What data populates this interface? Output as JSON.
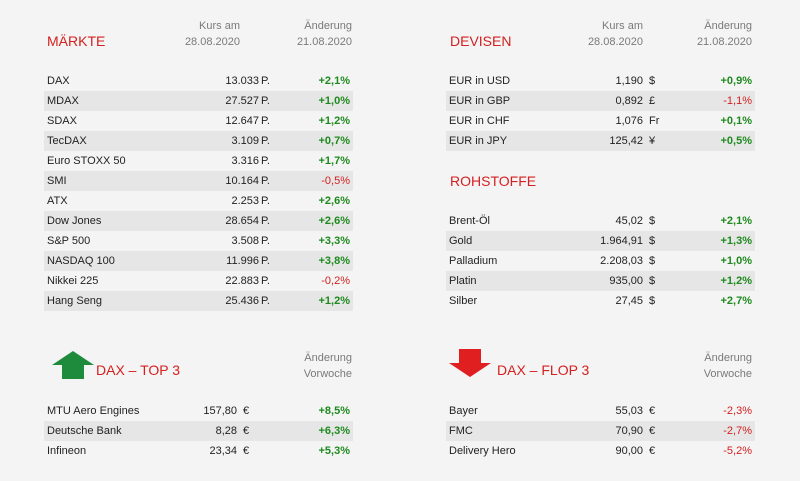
{
  "maerkte": {
    "title": "MÄRKTE",
    "col1": [
      "Kurs am",
      "28.08.2020"
    ],
    "col2": [
      "Änderung",
      "21.08.2020"
    ],
    "rows": [
      {
        "name": "DAX",
        "value": "13.033",
        "unit": "P.",
        "change": "+2,1%",
        "dir": "pos"
      },
      {
        "name": "MDAX",
        "value": "27.527",
        "unit": "P.",
        "change": "+1,0%",
        "dir": "pos"
      },
      {
        "name": "SDAX",
        "value": "12.647",
        "unit": "P.",
        "change": "+1,2%",
        "dir": "pos"
      },
      {
        "name": "TecDAX",
        "value": "3.109",
        "unit": "P.",
        "change": "+0,7%",
        "dir": "pos"
      },
      {
        "name": "Euro STOXX 50",
        "value": "3.316",
        "unit": "P.",
        "change": "+1,7%",
        "dir": "pos"
      },
      {
        "name": "SMI",
        "value": "10.164",
        "unit": "P.",
        "change": "-0,5%",
        "dir": "neg"
      },
      {
        "name": "ATX",
        "value": "2.253",
        "unit": "P.",
        "change": "+2,6%",
        "dir": "pos"
      },
      {
        "name": "Dow Jones",
        "value": "28.654",
        "unit": "P.",
        "change": "+2,6%",
        "dir": "pos"
      },
      {
        "name": "S&P 500",
        "value": "3.508",
        "unit": "P.",
        "change": "+3,3%",
        "dir": "pos"
      },
      {
        "name": "NASDAQ 100",
        "value": "11.996",
        "unit": "P.",
        "change": "+3,8%",
        "dir": "pos"
      },
      {
        "name": "Nikkei 225",
        "value": "22.883",
        "unit": "P.",
        "change": "-0,2%",
        "dir": "neg"
      },
      {
        "name": "Hang Seng",
        "value": "25.436",
        "unit": "P.",
        "change": "+1,2%",
        "dir": "pos"
      }
    ]
  },
  "devisen": {
    "title": "DEVISEN",
    "col1": [
      "Kurs am",
      "28.08.2020"
    ],
    "col2": [
      "Änderung",
      "21.08.2020"
    ],
    "rows": [
      {
        "name": "EUR in USD",
        "value": "1,190",
        "unit": "$",
        "change": "+0,9%",
        "dir": "pos"
      },
      {
        "name": "EUR in GBP",
        "value": "0,892",
        "unit": "£",
        "change": "-1,1%",
        "dir": "neg"
      },
      {
        "name": "EUR in CHF",
        "value": "1,076",
        "unit": "Fr",
        "change": "+0,1%",
        "dir": "pos"
      },
      {
        "name": "EUR in JPY",
        "value": "125,42",
        "unit": "¥",
        "change": "+0,5%",
        "dir": "pos"
      }
    ]
  },
  "rohstoffe": {
    "title": "ROHSTOFFE",
    "rows": [
      {
        "name": "Brent-Öl",
        "value": "45,02",
        "unit": "$",
        "change": "+2,1%",
        "dir": "pos"
      },
      {
        "name": "Gold",
        "value": "1.964,91",
        "unit": "$",
        "change": "+1,3%",
        "dir": "pos"
      },
      {
        "name": "Palladium",
        "value": "2.208,03",
        "unit": "$",
        "change": "+1,0%",
        "dir": "pos"
      },
      {
        "name": "Platin",
        "value": "935,00",
        "unit": "$",
        "change": "+1,2%",
        "dir": "pos"
      },
      {
        "name": "Silber",
        "value": "27,45",
        "unit": "$",
        "change": "+2,7%",
        "dir": "pos"
      }
    ]
  },
  "top3": {
    "title": "DAX – TOP 3",
    "icon": "arrow-up-icon",
    "color": "#1e8a3c",
    "col2": [
      "Änderung",
      "Vorwoche"
    ],
    "rows": [
      {
        "name": "MTU Aero Engines",
        "value": "157,80",
        "unit": "€",
        "change": "+8,5%",
        "dir": "pos"
      },
      {
        "name": "Deutsche Bank",
        "value": "8,28",
        "unit": "€",
        "change": "+6,3%",
        "dir": "pos"
      },
      {
        "name": "Infineon",
        "value": "23,34",
        "unit": "€",
        "change": "+5,3%",
        "dir": "pos"
      }
    ]
  },
  "flop3": {
    "title": "DAX – FLOP 3",
    "icon": "arrow-down-icon",
    "color": "#e02020",
    "col2": [
      "Änderung",
      "Vorwoche"
    ],
    "rows": [
      {
        "name": "Bayer",
        "value": "55,03",
        "unit": "€",
        "change": "-2,3%",
        "dir": "neg"
      },
      {
        "name": "FMC",
        "value": "70,90",
        "unit": "€",
        "change": "-2,7%",
        "dir": "neg"
      },
      {
        "name": "Delivery Hero",
        "value": "90,00",
        "unit": "€",
        "change": "-5,2%",
        "dir": "neg"
      }
    ]
  }
}
